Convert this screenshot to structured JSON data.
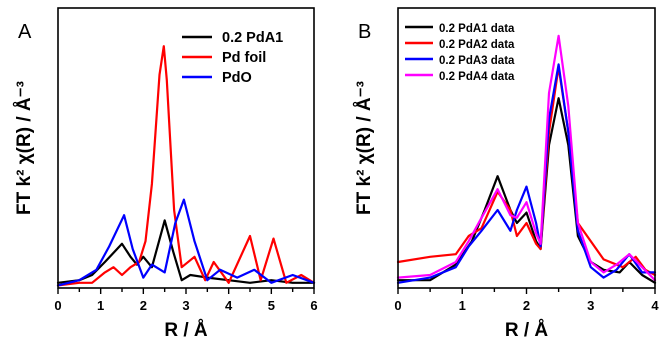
{
  "chart_data": [
    {
      "panel": "A",
      "type": "line",
      "xlabel": "R / Å",
      "ylabel": "FT k² χ(R) / Å⁻³",
      "xlim": [
        0,
        6
      ],
      "xticks": [
        0,
        1,
        2,
        3,
        4,
        5,
        6
      ],
      "ylim": [
        0,
        1.0
      ],
      "yticks_shown": false,
      "legend_position": "top-right",
      "series": [
        {
          "name": "0.2 PdA1",
          "color": "#000000",
          "points": [
            [
              0,
              0.02
            ],
            [
              0.5,
              0.03
            ],
            [
              0.8,
              0.05
            ],
            [
              1.1,
              0.1
            ],
            [
              1.5,
              0.17
            ],
            [
              1.7,
              0.12
            ],
            [
              1.85,
              0.09
            ],
            [
              2.0,
              0.12
            ],
            [
              2.2,
              0.08
            ],
            [
              2.5,
              0.26
            ],
            [
              2.7,
              0.14
            ],
            [
              2.9,
              0.03
            ],
            [
              3.1,
              0.05
            ],
            [
              3.5,
              0.04
            ],
            [
              4.0,
              0.03
            ],
            [
              4.5,
              0.02
            ],
            [
              5.0,
              0.03
            ],
            [
              5.5,
              0.02
            ],
            [
              6.0,
              0.02
            ]
          ]
        },
        {
          "name": "Pd foil",
          "color": "#ff0000",
          "points": [
            [
              0,
              0.01
            ],
            [
              0.5,
              0.02
            ],
            [
              0.8,
              0.02
            ],
            [
              1.1,
              0.06
            ],
            [
              1.3,
              0.08
            ],
            [
              1.5,
              0.05
            ],
            [
              1.7,
              0.08
            ],
            [
              1.9,
              0.1
            ],
            [
              2.05,
              0.18
            ],
            [
              2.2,
              0.4
            ],
            [
              2.38,
              0.82
            ],
            [
              2.48,
              0.93
            ],
            [
              2.55,
              0.8
            ],
            [
              2.72,
              0.3
            ],
            [
              2.9,
              0.08
            ],
            [
              3.2,
              0.12
            ],
            [
              3.45,
              0.03
            ],
            [
              3.65,
              0.1
            ],
            [
              4.0,
              0.02
            ],
            [
              4.5,
              0.2
            ],
            [
              4.75,
              0.03
            ],
            [
              5.05,
              0.19
            ],
            [
              5.35,
              0.02
            ],
            [
              5.7,
              0.05
            ],
            [
              6.0,
              0.02
            ]
          ]
        },
        {
          "name": "PdO",
          "color": "#0000ff",
          "points": [
            [
              0,
              0.01
            ],
            [
              0.5,
              0.03
            ],
            [
              0.9,
              0.07
            ],
            [
              1.2,
              0.16
            ],
            [
              1.55,
              0.28
            ],
            [
              1.75,
              0.15
            ],
            [
              2.0,
              0.04
            ],
            [
              2.2,
              0.09
            ],
            [
              2.5,
              0.06
            ],
            [
              2.75,
              0.25
            ],
            [
              2.95,
              0.34
            ],
            [
              3.2,
              0.18
            ],
            [
              3.5,
              0.03
            ],
            [
              3.8,
              0.07
            ],
            [
              4.2,
              0.04
            ],
            [
              4.6,
              0.07
            ],
            [
              5.0,
              0.02
            ],
            [
              5.5,
              0.05
            ],
            [
              6.0,
              0.02
            ]
          ]
        }
      ]
    },
    {
      "panel": "B",
      "type": "line",
      "xlabel": "R / Å",
      "ylabel": "FT k² χ(R) / Å⁻³",
      "xlim": [
        0,
        4
      ],
      "xticks": [
        0,
        1,
        2,
        3,
        4
      ],
      "ylim": [
        0,
        1.0
      ],
      "yticks_shown": false,
      "legend_position": "top-left",
      "series": [
        {
          "name": "0.2 PdA1 data",
          "color": "#000000",
          "points": [
            [
              0,
              0.03
            ],
            [
              0.5,
              0.03
            ],
            [
              0.9,
              0.09
            ],
            [
              1.15,
              0.18
            ],
            [
              1.35,
              0.3
            ],
            [
              1.55,
              0.43
            ],
            [
              1.75,
              0.3
            ],
            [
              1.85,
              0.25
            ],
            [
              2.0,
              0.29
            ],
            [
              2.15,
              0.18
            ],
            [
              2.22,
              0.15
            ],
            [
              2.35,
              0.55
            ],
            [
              2.5,
              0.73
            ],
            [
              2.65,
              0.55
            ],
            [
              2.8,
              0.2
            ],
            [
              3.0,
              0.1
            ],
            [
              3.2,
              0.07
            ],
            [
              3.45,
              0.06
            ],
            [
              3.6,
              0.1
            ],
            [
              3.8,
              0.05
            ],
            [
              4.0,
              0.02
            ]
          ]
        },
        {
          "name": "0.2 PdA2 data",
          "color": "#ff0000",
          "points": [
            [
              0,
              0.1
            ],
            [
              0.5,
              0.12
            ],
            [
              0.9,
              0.13
            ],
            [
              1.1,
              0.2
            ],
            [
              1.3,
              0.23
            ],
            [
              1.55,
              0.37
            ],
            [
              1.75,
              0.3
            ],
            [
              1.85,
              0.2
            ],
            [
              2.0,
              0.25
            ],
            [
              2.15,
              0.17
            ],
            [
              2.22,
              0.15
            ],
            [
              2.35,
              0.6
            ],
            [
              2.5,
              0.85
            ],
            [
              2.65,
              0.6
            ],
            [
              2.8,
              0.25
            ],
            [
              3.0,
              0.18
            ],
            [
              3.2,
              0.11
            ],
            [
              3.5,
              0.08
            ],
            [
              3.7,
              0.12
            ],
            [
              3.85,
              0.07
            ],
            [
              4.0,
              0.05
            ]
          ]
        },
        {
          "name": "0.2 PdA3 data",
          "color": "#0000ff",
          "points": [
            [
              0,
              0.02
            ],
            [
              0.5,
              0.04
            ],
            [
              0.9,
              0.08
            ],
            [
              1.1,
              0.16
            ],
            [
              1.3,
              0.22
            ],
            [
              1.55,
              0.3
            ],
            [
              1.75,
              0.22
            ],
            [
              1.85,
              0.3
            ],
            [
              2.0,
              0.39
            ],
            [
              2.15,
              0.25
            ],
            [
              2.22,
              0.16
            ],
            [
              2.35,
              0.65
            ],
            [
              2.5,
              0.86
            ],
            [
              2.65,
              0.6
            ],
            [
              2.8,
              0.22
            ],
            [
              3.0,
              0.08
            ],
            [
              3.2,
              0.04
            ],
            [
              3.4,
              0.07
            ],
            [
              3.6,
              0.13
            ],
            [
              3.8,
              0.06
            ],
            [
              4.0,
              0.06
            ]
          ]
        },
        {
          "name": "0.2 PdA4 data",
          "color": "#ff00ff",
          "points": [
            [
              0,
              0.04
            ],
            [
              0.5,
              0.05
            ],
            [
              0.9,
              0.1
            ],
            [
              1.1,
              0.18
            ],
            [
              1.3,
              0.27
            ],
            [
              1.55,
              0.38
            ],
            [
              1.75,
              0.28
            ],
            [
              1.85,
              0.27
            ],
            [
              2.0,
              0.33
            ],
            [
              2.15,
              0.21
            ],
            [
              2.22,
              0.17
            ],
            [
              2.35,
              0.75
            ],
            [
              2.5,
              0.97
            ],
            [
              2.65,
              0.7
            ],
            [
              2.8,
              0.25
            ],
            [
              3.0,
              0.1
            ],
            [
              3.2,
              0.06
            ],
            [
              3.4,
              0.09
            ],
            [
              3.6,
              0.13
            ],
            [
              3.8,
              0.08
            ],
            [
              4.0,
              0.03
            ]
          ]
        }
      ]
    }
  ]
}
